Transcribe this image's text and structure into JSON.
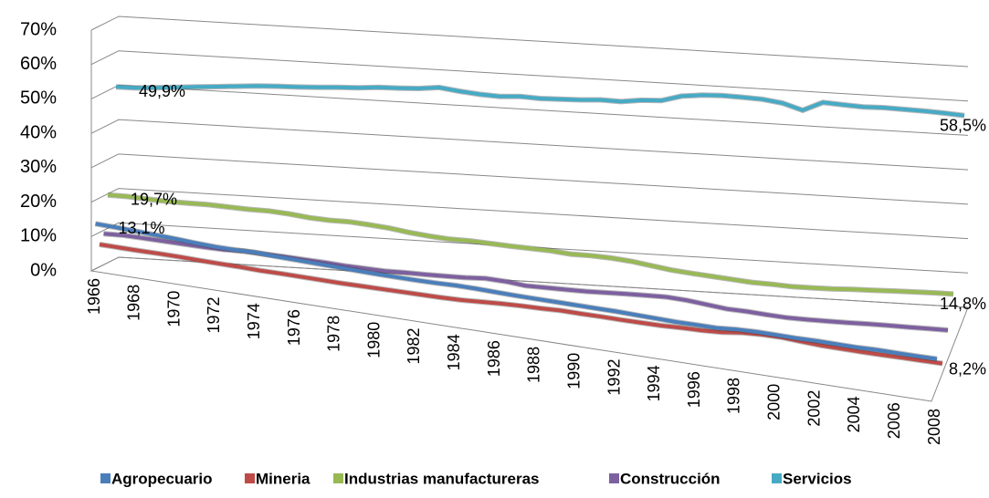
{
  "chart_data": {
    "type": "line3d",
    "categories": [
      "1966",
      null,
      "1968",
      null,
      "1970",
      null,
      "1972",
      null,
      "1974",
      null,
      "1976",
      null,
      "1978",
      null,
      "1980",
      null,
      "1982",
      null,
      "1984",
      null,
      "1986",
      null,
      "1988",
      null,
      "1990",
      null,
      "1992",
      null,
      "1994",
      null,
      "1996",
      null,
      "1998",
      null,
      "2000",
      null,
      "2002",
      null,
      "2004",
      null,
      "2006",
      null,
      "2008"
    ],
    "ylim": [
      0,
      70
    ],
    "yticks": [
      {
        "value": 0,
        "label": "0%"
      },
      {
        "value": 10,
        "label": "10%"
      },
      {
        "value": 20,
        "label": "20%"
      },
      {
        "value": 30,
        "label": "30%"
      },
      {
        "value": 40,
        "label": "40%"
      },
      {
        "value": 50,
        "label": "50%"
      },
      {
        "value": 60,
        "label": "60%"
      },
      {
        "value": 70,
        "label": "70%"
      }
    ],
    "grid": true,
    "legend": "bottom",
    "series": [
      {
        "name": "Agropecuario",
        "color": "#4a7ebb",
        "values": [
          13.1,
          12.9,
          12.6,
          12.3,
          12,
          11.6,
          11.3,
          11.2,
          11.3,
          11,
          10.8,
          10.6,
          10.4,
          10.2,
          10,
          9.9,
          9.8,
          9.8,
          9.9,
          9.8,
          9.6,
          9.4,
          9.3,
          9.2,
          9.1,
          9,
          8.9,
          8.7,
          8.5,
          8.3,
          8.3,
          8.2,
          8.6,
          8.7,
          8.6,
          8.5,
          8.5,
          8.4,
          8.3,
          8.4,
          8.3,
          8.2,
          8.2
        ],
        "value_labels": [
          "13,1%",
          null,
          null,
          null,
          null,
          null,
          null,
          null,
          null,
          null,
          null,
          null,
          null,
          null,
          null,
          null,
          null,
          null,
          null,
          null,
          null,
          null,
          null,
          null,
          null,
          null,
          null,
          null,
          null,
          null,
          null,
          null,
          null,
          null,
          null,
          null,
          null,
          null,
          null,
          null,
          null,
          null,
          "8,2%"
        ]
      },
      {
        "name": "Mineria",
        "color": "#be4b48",
        "values": [
          6.5,
          6.3,
          6.1,
          6,
          5.8,
          5.5,
          5.3,
          5.1,
          4.8,
          4.7,
          4.5,
          4.3,
          4.1,
          4,
          3.9,
          3.8,
          3.7,
          3.6,
          3.6,
          3.8,
          4,
          4.1,
          4.1,
          4.2,
          4,
          3.9,
          3.7,
          3.6,
          3.5,
          3.6,
          3.6,
          3.8,
          4.4,
          4.6,
          4.5,
          4,
          3.6,
          3.4,
          3.2,
          3.1,
          3,
          2.9,
          2.8
        ]
      },
      {
        "name": "Industrias manufactureras",
        "color": "#98b954",
        "values": [
          19.7,
          19.8,
          19.6,
          19.5,
          19.6,
          19.7,
          19.6,
          19.5,
          19.6,
          19.3,
          18.8,
          18.6,
          18.7,
          18.4,
          18,
          17.3,
          16.8,
          16.5,
          16.6,
          16.4,
          16.2,
          16.1,
          16,
          15.6,
          15.7,
          15.6,
          15.2,
          14.5,
          13.8,
          13.4,
          13.1,
          12.8,
          12.5,
          12.5,
          12.4,
          12.6,
          12.9,
          13.3,
          13.6,
          14,
          14.3,
          14.6,
          14.8
        ],
        "value_labels": [
          "19,7%",
          null,
          null,
          null,
          null,
          null,
          null,
          null,
          null,
          null,
          null,
          null,
          null,
          null,
          null,
          null,
          null,
          null,
          null,
          null,
          null,
          null,
          null,
          null,
          null,
          null,
          null,
          null,
          null,
          null,
          null,
          null,
          null,
          null,
          null,
          null,
          null,
          null,
          null,
          null,
          null,
          null,
          "14,8%"
        ]
      },
      {
        "name": "Construcción",
        "color": "#7d60a0",
        "values": [
          9,
          9.2,
          9,
          8.8,
          8.6,
          8.4,
          8.3,
          8.5,
          8.3,
          8.2,
          8,
          7.8,
          7.5,
          7.4,
          7.3,
          7.5,
          7.6,
          7.8,
          8,
          8.4,
          8.2,
          7.6,
          7.7,
          7.8,
          7.9,
          8.2,
          8.5,
          8.7,
          8.9,
          8.6,
          8,
          7.4,
          7.3,
          7,
          6.8,
          6.9,
          7.1,
          7.3,
          7.6,
          7.8,
          8,
          8.2,
          8.4
        ]
      },
      {
        "name": "Servicios",
        "color": "#46aac5",
        "values": [
          49.9,
          50,
          50.5,
          51,
          51.5,
          52,
          52.5,
          53,
          53.3,
          53.5,
          53.8,
          54.2,
          54.5,
          55,
          55.2,
          55.5,
          56.2,
          55.5,
          55,
          54.8,
          55.2,
          55,
          55.2,
          55.4,
          55.8,
          55.7,
          56.5,
          56.8,
          58.5,
          59.2,
          59.5,
          59.4,
          59.2,
          58.5,
          56.8,
          59.5,
          59.2,
          59,
          59.2,
          59.1,
          59,
          58.8,
          58.5
        ],
        "value_labels": [
          "49,9%",
          null,
          null,
          null,
          null,
          null,
          null,
          null,
          null,
          null,
          null,
          null,
          null,
          null,
          null,
          null,
          null,
          null,
          null,
          null,
          null,
          null,
          null,
          null,
          null,
          null,
          null,
          null,
          null,
          null,
          null,
          null,
          null,
          null,
          null,
          null,
          null,
          null,
          null,
          null,
          null,
          null,
          "58,5%"
        ]
      }
    ]
  }
}
